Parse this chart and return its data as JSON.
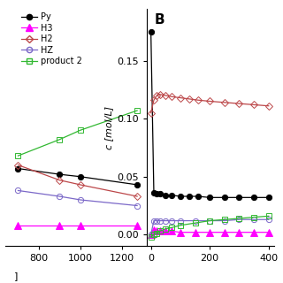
{
  "panel_A": {
    "Py": {
      "x": [
        700,
        900,
        1000,
        1275
      ],
      "y": [
        0.057,
        0.052,
        0.05,
        0.043
      ]
    },
    "H3": {
      "x": [
        700,
        900,
        1000,
        1275
      ],
      "y": [
        0.008,
        0.008,
        0.008,
        0.008
      ]
    },
    "H2": {
      "x": [
        700,
        900,
        1000,
        1275
      ],
      "y": [
        0.06,
        0.047,
        0.043,
        0.033
      ]
    },
    "HZ": {
      "x": [
        700,
        900,
        1000,
        1275
      ],
      "y": [
        0.038,
        0.033,
        0.03,
        0.025
      ]
    },
    "prod2": {
      "x": [
        700,
        900,
        1000,
        1275
      ],
      "y": [
        0.068,
        0.082,
        0.09,
        0.107
      ]
    },
    "xlim": [
      640,
      1320
    ],
    "ylim": [
      -0.01,
      0.195
    ],
    "xticks": [
      800,
      1000,
      1200
    ]
  },
  "panel_B": {
    "Py": {
      "x": [
        0,
        10,
        20,
        30,
        50,
        70,
        100,
        130,
        160,
        200,
        250,
        300,
        350,
        400
      ],
      "y": [
        0.175,
        0.036,
        0.035,
        0.035,
        0.034,
        0.034,
        0.033,
        0.033,
        0.033,
        0.032,
        0.032,
        0.032,
        0.032,
        0.032
      ]
    },
    "H3": {
      "x": [
        0,
        10,
        20,
        30,
        50,
        70,
        100,
        150,
        200,
        250,
        300,
        350,
        400
      ],
      "y": [
        0.0,
        0.004,
        0.003,
        0.003,
        0.003,
        0.003,
        0.002,
        0.002,
        0.002,
        0.002,
        0.002,
        0.002,
        0.002
      ]
    },
    "H2": {
      "x": [
        0,
        10,
        20,
        30,
        50,
        70,
        100,
        130,
        160,
        200,
        250,
        300,
        350,
        400
      ],
      "y": [
        0.105,
        0.116,
        0.12,
        0.121,
        0.12,
        0.119,
        0.118,
        0.117,
        0.116,
        0.115,
        0.114,
        0.113,
        0.112,
        0.111
      ]
    },
    "HZ": {
      "x": [
        0,
        10,
        20,
        30,
        50,
        70,
        100,
        150,
        200,
        250,
        300,
        350,
        400
      ],
      "y": [
        0.0,
        0.012,
        0.012,
        0.012,
        0.012,
        0.012,
        0.012,
        0.012,
        0.012,
        0.012,
        0.013,
        0.013,
        0.013
      ]
    },
    "prod2": {
      "x": [
        0,
        10,
        20,
        30,
        50,
        70,
        100,
        150,
        200,
        250,
        300,
        350,
        400
      ],
      "y": [
        -0.002,
        0.0,
        0.001,
        0.003,
        0.005,
        0.006,
        0.008,
        0.01,
        0.012,
        0.013,
        0.014,
        0.015,
        0.016
      ]
    },
    "xlim": [
      -15,
      420
    ],
    "ylim": [
      -0.01,
      0.195
    ],
    "xticks": [
      0,
      200,
      400
    ],
    "yticks": [
      0.0,
      0.05,
      0.1,
      0.15
    ]
  },
  "colors": {
    "Py": "#000000",
    "H3": "#ff00ff",
    "H2": "#bc4749",
    "HZ": "#7b68c8",
    "prod2": "#32b832"
  },
  "ylabel": "c [mol/L]",
  "panel_B_label": "B",
  "lw": 0.9
}
